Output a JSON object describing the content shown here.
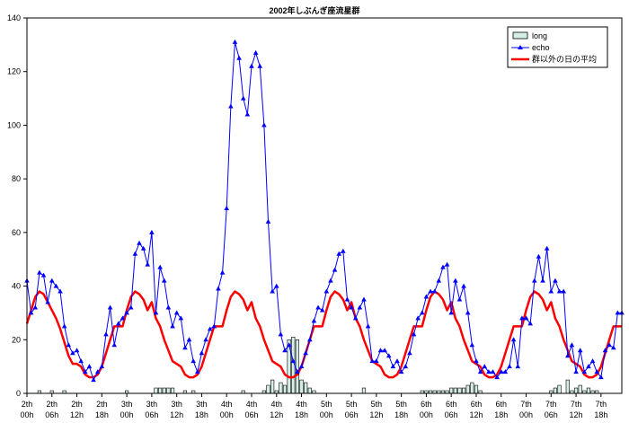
{
  "chart_data": {
    "type": "line",
    "title": "2002年しぶんぎ座流星群",
    "xlabel": "",
    "ylabel": "",
    "ylim": [
      0,
      140
    ],
    "yticks": [
      0,
      20,
      40,
      60,
      80,
      100,
      120,
      140
    ],
    "grid": false,
    "legend_position": "top-right",
    "x_start": "2th 00h",
    "x_step_hours": 1,
    "x_tick_labels": [
      {
        "hour": 0,
        "line1": "2th",
        "line2": "00h"
      },
      {
        "hour": 6,
        "line1": "2th",
        "line2": "06h"
      },
      {
        "hour": 12,
        "line1": "2th",
        "line2": "12h"
      },
      {
        "hour": 18,
        "line1": "2th",
        "line2": "18h"
      },
      {
        "hour": 24,
        "line1": "3th",
        "line2": "00h"
      },
      {
        "hour": 30,
        "line1": "3th",
        "line2": "06h"
      },
      {
        "hour": 36,
        "line1": "3th",
        "line2": "12h"
      },
      {
        "hour": 42,
        "line1": "3th",
        "line2": "18h"
      },
      {
        "hour": 48,
        "line1": "4th",
        "line2": "00h"
      },
      {
        "hour": 54,
        "line1": "4th",
        "line2": "06h"
      },
      {
        "hour": 60,
        "line1": "4th",
        "line2": "12h"
      },
      {
        "hour": 66,
        "line1": "4th",
        "line2": "18h"
      },
      {
        "hour": 72,
        "line1": "5th",
        "line2": "00h"
      },
      {
        "hour": 78,
        "line1": "5th",
        "line2": "06h"
      },
      {
        "hour": 84,
        "line1": "5th",
        "line2": "12h"
      },
      {
        "hour": 90,
        "line1": "5th",
        "line2": "18h"
      },
      {
        "hour": 96,
        "line1": "6th",
        "line2": "00h"
      },
      {
        "hour": 102,
        "line1": "6th",
        "line2": "06h"
      },
      {
        "hour": 108,
        "line1": "6th",
        "line2": "12h"
      },
      {
        "hour": 114,
        "line1": "6th",
        "line2": "18h"
      },
      {
        "hour": 120,
        "line1": "7th",
        "line2": "00h"
      },
      {
        "hour": 126,
        "line1": "7th",
        "line2": "06h"
      },
      {
        "hour": 132,
        "line1": "7th",
        "line2": "12h"
      },
      {
        "hour": 138,
        "line1": "7th",
        "line2": "18h"
      }
    ],
    "series": [
      {
        "name": "long",
        "type": "bar",
        "color": "#d6efe6",
        "values": [
          0,
          0,
          0,
          1,
          0,
          0,
          1,
          0,
          0,
          1,
          0,
          0,
          0,
          0,
          0,
          0,
          0,
          0,
          0,
          0,
          0,
          0,
          0,
          0,
          1,
          0,
          0,
          0,
          0,
          0,
          0,
          2,
          2,
          2,
          2,
          2,
          0,
          0,
          1,
          0,
          1,
          0,
          0,
          0,
          0,
          0,
          0,
          0,
          0,
          0,
          0,
          0,
          1,
          0,
          0,
          0,
          0,
          1,
          3,
          5,
          1,
          4,
          3,
          20,
          21,
          20,
          5,
          4,
          2,
          1,
          0,
          0,
          0,
          0,
          0,
          0,
          0,
          0,
          0,
          0,
          0,
          2,
          0,
          0,
          0,
          0,
          0,
          0,
          0,
          0,
          0,
          0,
          0,
          0,
          0,
          1,
          1,
          1,
          1,
          1,
          1,
          1,
          2,
          2,
          2,
          2,
          3,
          4,
          3,
          1,
          0,
          0,
          0,
          0,
          0,
          0,
          0,
          0,
          0,
          0,
          0,
          0,
          0,
          0,
          0,
          0,
          1,
          2,
          3,
          0,
          5,
          1,
          2,
          3,
          1,
          2,
          1,
          1,
          0,
          0,
          0,
          0,
          0,
          0,
          0,
          0,
          0,
          0,
          0,
          0
        ]
      },
      {
        "name": "echo",
        "type": "line",
        "color": "#0000ff",
        "marker": "triangle",
        "values": [
          42,
          30,
          32,
          45,
          44,
          34,
          42,
          40,
          38,
          25,
          18,
          15,
          16,
          12,
          8,
          10,
          5,
          8,
          10,
          22,
          32,
          18,
          26,
          28,
          30,
          32,
          52,
          56,
          54,
          48,
          60,
          30,
          47,
          42,
          32,
          25,
          30,
          28,
          17,
          20,
          12,
          8,
          15,
          20,
          24,
          25,
          39,
          45,
          69,
          107,
          131,
          125,
          110,
          104,
          122,
          127,
          122,
          100,
          64,
          38,
          40,
          22,
          16,
          18,
          12,
          8,
          10,
          15,
          20,
          27,
          32,
          31,
          38,
          42,
          46,
          52,
          53,
          35,
          32,
          28,
          32,
          35,
          25,
          12,
          12,
          16,
          16,
          14,
          10,
          12,
          8,
          10,
          15,
          22,
          28,
          30,
          36,
          38,
          38,
          42,
          47,
          48,
          30,
          42,
          35,
          40,
          30,
          18,
          12,
          8,
          10,
          8,
          8,
          6,
          8,
          8,
          10,
          20,
          10,
          28,
          28,
          26,
          42,
          51,
          42,
          54,
          38,
          42,
          38,
          38,
          14,
          18,
          8,
          16,
          8,
          10,
          12,
          8,
          6,
          16,
          18,
          17,
          30,
          30
        ]
      },
      {
        "name": "群以外の日の平均",
        "type": "line",
        "color": "#ff0000",
        "values": [
          26,
          31,
          36,
          38,
          37,
          34,
          31,
          28,
          24,
          19,
          14,
          11,
          11,
          10,
          7,
          6,
          6,
          7,
          10,
          15,
          20,
          25,
          25,
          25,
          31,
          36,
          38,
          37,
          35,
          31,
          34,
          28,
          25,
          20,
          16,
          12,
          11,
          10,
          7,
          6,
          6,
          7,
          10,
          15,
          20,
          25,
          25,
          25,
          31,
          36,
          38,
          37,
          35,
          31,
          34,
          28,
          25,
          20,
          16,
          12,
          11,
          10,
          7,
          6,
          6,
          7,
          10,
          15,
          20,
          25,
          25,
          25,
          31,
          36,
          38,
          37,
          35,
          31,
          34,
          28,
          25,
          20,
          16,
          12,
          11,
          10,
          7,
          6,
          6,
          7,
          10,
          15,
          20,
          25,
          25,
          25,
          31,
          36,
          38,
          37,
          35,
          31,
          34,
          28,
          25,
          20,
          16,
          12,
          11,
          10,
          7,
          6,
          6,
          7,
          10,
          15,
          20,
          25,
          25,
          25,
          31,
          36,
          38,
          37,
          35,
          31,
          34,
          28,
          25,
          20,
          16,
          12,
          11,
          10,
          7,
          6,
          6,
          7,
          10,
          15,
          20,
          25,
          25,
          25
        ]
      }
    ]
  }
}
